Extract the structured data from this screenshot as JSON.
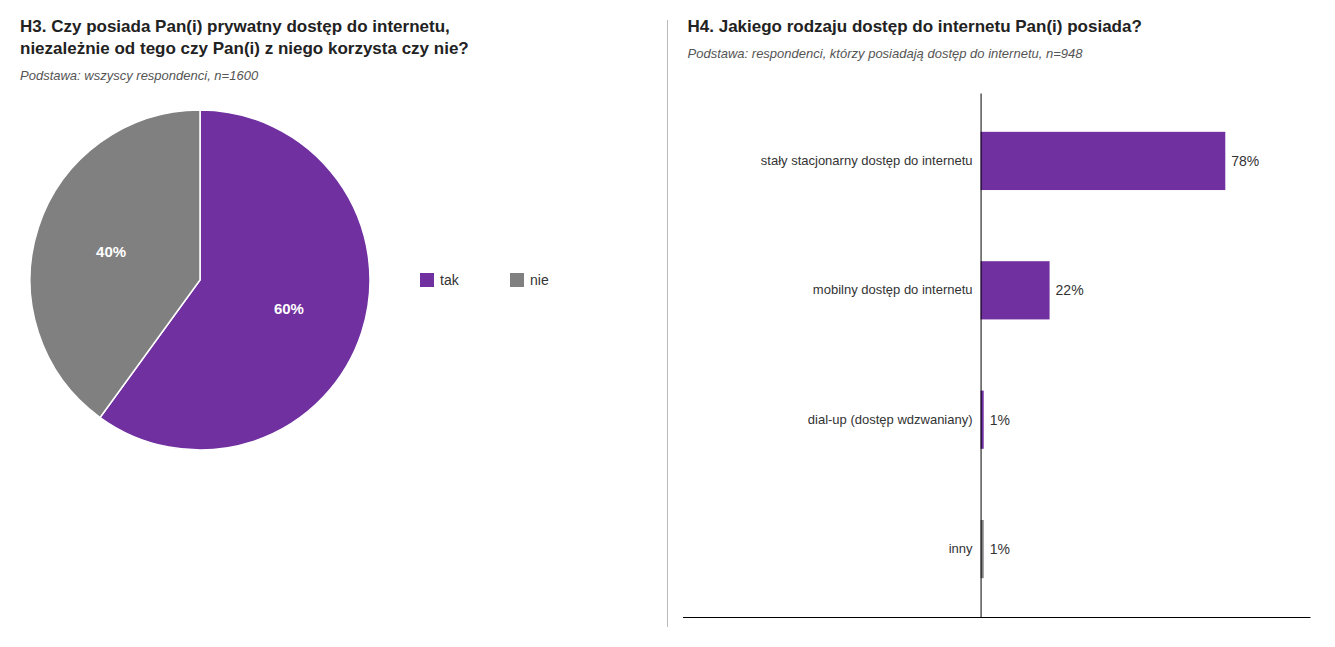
{
  "chart_data": [
    {
      "type": "pie",
      "title": "H3. Czy posiada Pan(i) prywatny dostęp do internetu,\nniezależnie od tego czy Pan(i) z niego korzysta czy nie?",
      "subtitle": "Podstawa: wszyscy respondenci, n=1600",
      "categories": [
        "tak",
        "nie"
      ],
      "values": [
        60,
        40
      ],
      "value_labels": [
        "60%",
        "40%"
      ],
      "colors": [
        "#7030a0",
        "#808080"
      ],
      "data_labels": true,
      "legend": "right"
    },
    {
      "type": "bar",
      "title": "H4. Jakiego rodzaju dostęp do internetu Pan(i) posiada?",
      "subtitle": "Podstawa: respondenci, którzy posiadają dostęp do internetu, n=948",
      "orientation": "horizontal",
      "categories": [
        "stały stacjonarny dostęp do internetu",
        "mobilny dostęp do internetu",
        "dial-up (dostęp wdzwaniany)",
        "inny"
      ],
      "values": [
        78,
        22,
        1,
        1
      ],
      "value_labels": [
        "78%",
        "22%",
        "1%",
        "1%"
      ],
      "colors": [
        "#7030a0",
        "#7030a0",
        "#7030a0",
        "#808080"
      ],
      "xlim": [
        -95,
        105
      ],
      "xticks": [],
      "grid": false,
      "data_labels": true,
      "tick_labels": "y"
    }
  ]
}
